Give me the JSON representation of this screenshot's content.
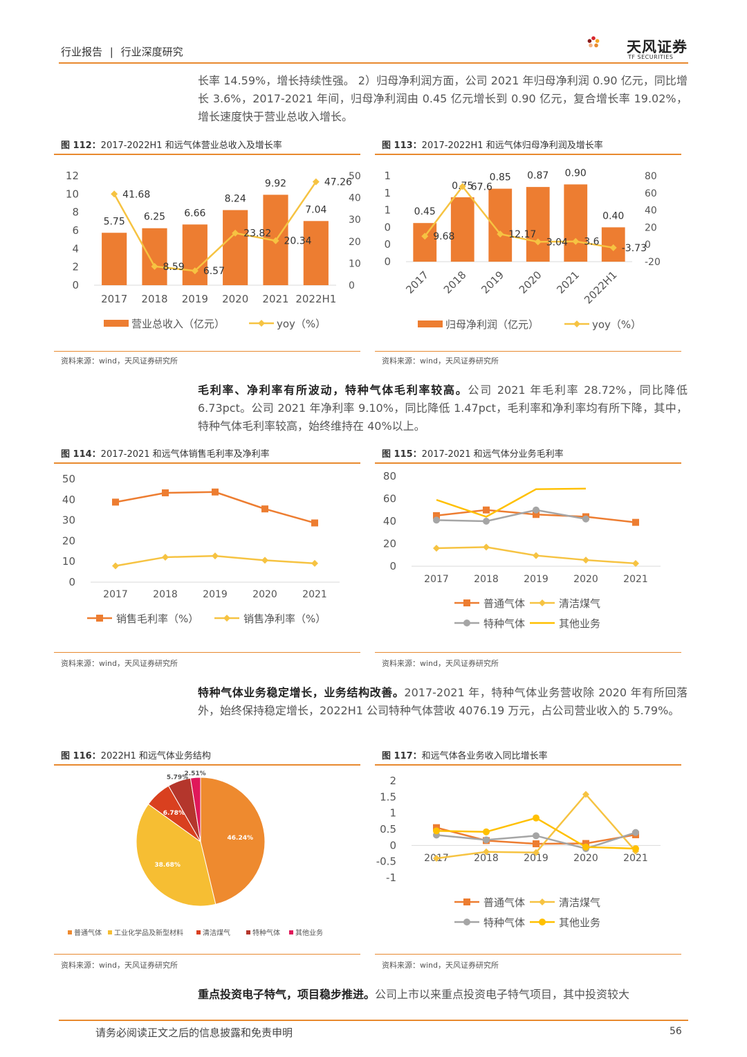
{
  "header": {
    "left": "行业报告",
    "sep": "|",
    "right": "行业深度研究"
  },
  "logo": {
    "name": "天风证券",
    "sub": "TF SECURITIES"
  },
  "colors": {
    "accent": "#e8892e",
    "orange": "#ed7d31",
    "yellow": "#f6c342",
    "gray": "#a5a5a5",
    "gold": "#ffc000"
  },
  "paragraphs": {
    "p1": "长率 14.59%，增长持续性强。 2）归母净利润方面，公司 2021 年归母净利润 0.90 亿元，同比增长 3.6%，2017-2021 年间，归母净利润由 0.45 亿元增长到 0.90 亿元，复合增长率 19.02%，增长速度快于营业总收入增长。",
    "p2_bold": "毛利率、净利率有所波动，特种气体毛利率较高。",
    "p2": "公司 2021 年毛利率 28.72%，同比降低 6.73pct。公司 2021 年净利率 9.10%，同比降低 1.47pct，毛利率和净利率均有所下降，其中，特种气体毛利率较高，始终维持在 40%以上。",
    "p3_bold": "特种气体业务稳定增长，业务结构改善。",
    "p3": "2017-2021 年，特种气体业务营收除 2020 年有所回落外，始终保持稳定增长，2022H1 公司特种气体营收 4076.19 万元，占公司营业收入的 5.79%。",
    "p4_bold": "重点投资电子特气，项目稳步推进。",
    "p4": "公司上市以来重点投资电子特气项目，其中投资较大"
  },
  "figures": {
    "f112": {
      "num": "图 112：",
      "title": "2017-2022H1 和远气体营业总收入及增长率"
    },
    "f113": {
      "num": "图 113：",
      "title": "2017-2022H1 和远气体归母净利润及增长率"
    },
    "f114": {
      "num": "图 114：",
      "title": "2017-2021 和远气体销售毛利率及净利率"
    },
    "f115": {
      "num": "图 115：",
      "title": "2017-2021 和远气体分业务毛利率"
    },
    "f116": {
      "num": "图 116：",
      "title": "2022H1 和远气体业务结构"
    },
    "f117": {
      "num": "图 117：",
      "title": "和远气体各业务收入同比增长率"
    }
  },
  "source": "资料来源：wind，天风证券研究所",
  "footer": {
    "disclaimer": "请务必阅读正文之后的信息披露和免责申明",
    "page": "56"
  },
  "chart_data": [
    {
      "id": "f112",
      "type": "bar",
      "categories": [
        "2017",
        "2018",
        "2019",
        "2020",
        "2021",
        "2022H1"
      ],
      "series": [
        {
          "name": "营业总收入（亿元）",
          "type": "bar",
          "axis": "left",
          "values": [
            5.75,
            6.25,
            6.66,
            8.24,
            9.92,
            7.04
          ],
          "labels": [
            "5.75",
            "6.25",
            "6.66",
            "8.24",
            "9.92",
            "7.04"
          ]
        },
        {
          "name": "yoy（%）",
          "type": "line",
          "axis": "right",
          "values": [
            41.68,
            8.59,
            6.57,
            23.82,
            20.34,
            47.26
          ],
          "labels": [
            "41.68",
            "8.59",
            "6.57",
            "23.82",
            "20.34",
            "47.26"
          ]
        }
      ],
      "ylim_left": [
        0,
        12
      ],
      "yticks_left": [
        "0",
        "2",
        "4",
        "6",
        "8",
        "10",
        "12"
      ],
      "ylim_right": [
        0,
        50
      ],
      "yticks_right": [
        "0",
        "10",
        "20",
        "30",
        "40",
        "50"
      ],
      "legend": "bottom"
    },
    {
      "id": "f113",
      "type": "bar",
      "categories": [
        "2017",
        "2018",
        "2019",
        "2020",
        "2021",
        "2022H1"
      ],
      "series": [
        {
          "name": "归母净利润（亿元）",
          "type": "bar",
          "axis": "left",
          "values": [
            0.45,
            0.75,
            0.85,
            0.87,
            0.9,
            0.4
          ],
          "labels": [
            "0.45",
            "0.75",
            "0.85",
            "0.87",
            "0.90",
            "0.40"
          ]
        },
        {
          "name": "yoy（%）",
          "type": "line",
          "axis": "right",
          "values": [
            9.68,
            67.6,
            12.17,
            3.04,
            3.6,
            -3.73
          ],
          "labels": [
            "9.68",
            "67.6",
            "12.17",
            "3.04",
            "3.6",
            "-3.73"
          ]
        }
      ],
      "ylim_left": [
        0,
        1
      ],
      "yticks_left": [
        "0",
        "0",
        "0",
        "1",
        "1",
        "1"
      ],
      "ylim_right": [
        -20,
        80
      ],
      "yticks_right": [
        "-20",
        "0",
        "20",
        "40",
        "60",
        "80"
      ],
      "legend": "bottom"
    },
    {
      "id": "f114",
      "type": "line",
      "categories": [
        "2017",
        "2018",
        "2019",
        "2020",
        "2021"
      ],
      "series": [
        {
          "name": "销售毛利率（%）",
          "values": [
            38.8,
            43.3,
            43.7,
            35.5,
            28.7
          ]
        },
        {
          "name": "销售净利率（%）",
          "values": [
            7.9,
            12.1,
            12.7,
            10.6,
            9.1
          ]
        }
      ],
      "ylim": [
        0,
        50
      ],
      "yticks": [
        "0",
        "10",
        "20",
        "30",
        "40",
        "50"
      ],
      "legend": "bottom"
    },
    {
      "id": "f115",
      "type": "line",
      "categories": [
        "2017",
        "2018",
        "2019",
        "2020",
        "2021"
      ],
      "series": [
        {
          "name": "普通气体",
          "values": [
            45,
            50,
            46,
            44,
            39
          ]
        },
        {
          "name": "清洁煤气",
          "values": [
            16,
            17,
            9.5,
            5.5,
            2.5
          ]
        },
        {
          "name": "特种气体",
          "values": [
            41,
            40,
            50,
            42,
            null
          ]
        },
        {
          "name": "其他业务",
          "values": [
            59,
            44,
            68.5,
            69,
            null
          ]
        }
      ],
      "ylim": [
        0,
        80
      ],
      "yticks": [
        "0",
        "20",
        "40",
        "60",
        "80"
      ],
      "legend": "bottom"
    },
    {
      "id": "f116",
      "type": "pie",
      "slices": [
        {
          "name": "普通气体",
          "value": 46.24,
          "label": "46.24%"
        },
        {
          "name": "工业化学品及新型材料",
          "value": 38.68,
          "label": "38.68%"
        },
        {
          "name": "清洁煤气",
          "value": 6.78,
          "label": "6.78%"
        },
        {
          "name": "特种气体",
          "value": 5.79,
          "label": "5.79%"
        },
        {
          "name": "其他业务",
          "value": 2.51,
          "label": "2.51%"
        }
      ],
      "legend": "bottom"
    },
    {
      "id": "f117",
      "type": "line",
      "categories": [
        "2017",
        "2018",
        "2019",
        "2020",
        "2021"
      ],
      "series": [
        {
          "name": "普通气体",
          "values": [
            0.55,
            0.15,
            0.05,
            0.06,
            0.33
          ]
        },
        {
          "name": "清洁煤气",
          "values": [
            -0.4,
            -0.2,
            -0.22,
            1.58,
            -0.18
          ]
        },
        {
          "name": "特种气体",
          "values": [
            0.32,
            0.17,
            0.3,
            -0.1,
            0.4
          ]
        },
        {
          "name": "其他业务",
          "values": [
            0.45,
            0.42,
            0.85,
            -0.05,
            -0.1
          ]
        }
      ],
      "ylim": [
        -1,
        2
      ],
      "yticks": [
        "-1",
        "-0.5",
        "0",
        "0.5",
        "1",
        "1.5",
        "2"
      ],
      "legend": "bottom"
    }
  ]
}
